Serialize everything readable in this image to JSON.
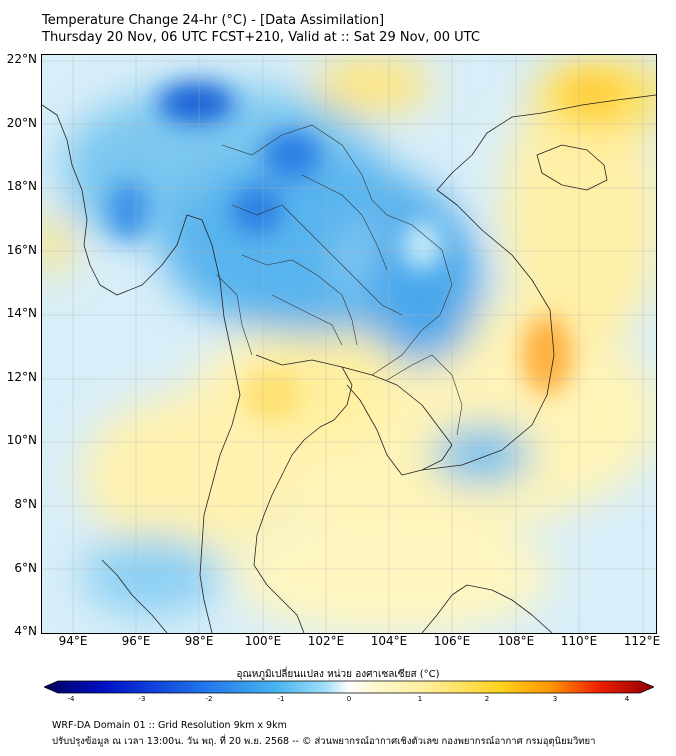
{
  "title": {
    "line1": "Temperature Change 24-hr (°C) - [Data Assimilation]",
    "line2": "Thursday 20 Nov, 06 UTC FCST+210, Valid at :: Sat 29 Nov, 00 UTC"
  },
  "map": {
    "lat_labels": [
      "22°N",
      "20°N",
      "18°N",
      "16°N",
      "14°N",
      "12°N",
      "10°N",
      "8°N",
      "6°N",
      "4°N"
    ],
    "lon_labels": [
      "94°E",
      "96°E",
      "98°E",
      "100°E",
      "102°E",
      "104°E",
      "106°E",
      "108°E",
      "110°E",
      "112°E"
    ],
    "lat_range": [
      4,
      22.3
    ],
    "lon_range": [
      93.1,
      112.5
    ]
  },
  "colorbar": {
    "label": "อุณหภูมิเปลี่ยนแปลง หน่วย องศาเซลเซียส (°C)",
    "ticks": [
      "-4",
      "-3",
      "-2",
      "-1",
      "0",
      "1",
      "2",
      "3",
      "4"
    ],
    "range": [
      -4,
      4
    ],
    "colors": [
      "#00005a",
      "#0010c8",
      "#1e6ee8",
      "#46b4f0",
      "#a0dcf8",
      "#ffffff",
      "#fff0a0",
      "#ffd21e",
      "#ff9600",
      "#f01e00",
      "#8c0000"
    ]
  },
  "footer": {
    "line1": "WRF-DA Domain 01 :: Grid Resolution 9km x 9km",
    "line2": "ปรับปรุงข้อมูล ณ เวลา 13:00น. วัน พฤ. ที่ 20 พ.ย. 2568 -- © ส่วนพยากรณ์อากาศเชิงตัวเลข กองพยากรณ์อากาศ กรมอุตุนิยมวิทยา"
  }
}
